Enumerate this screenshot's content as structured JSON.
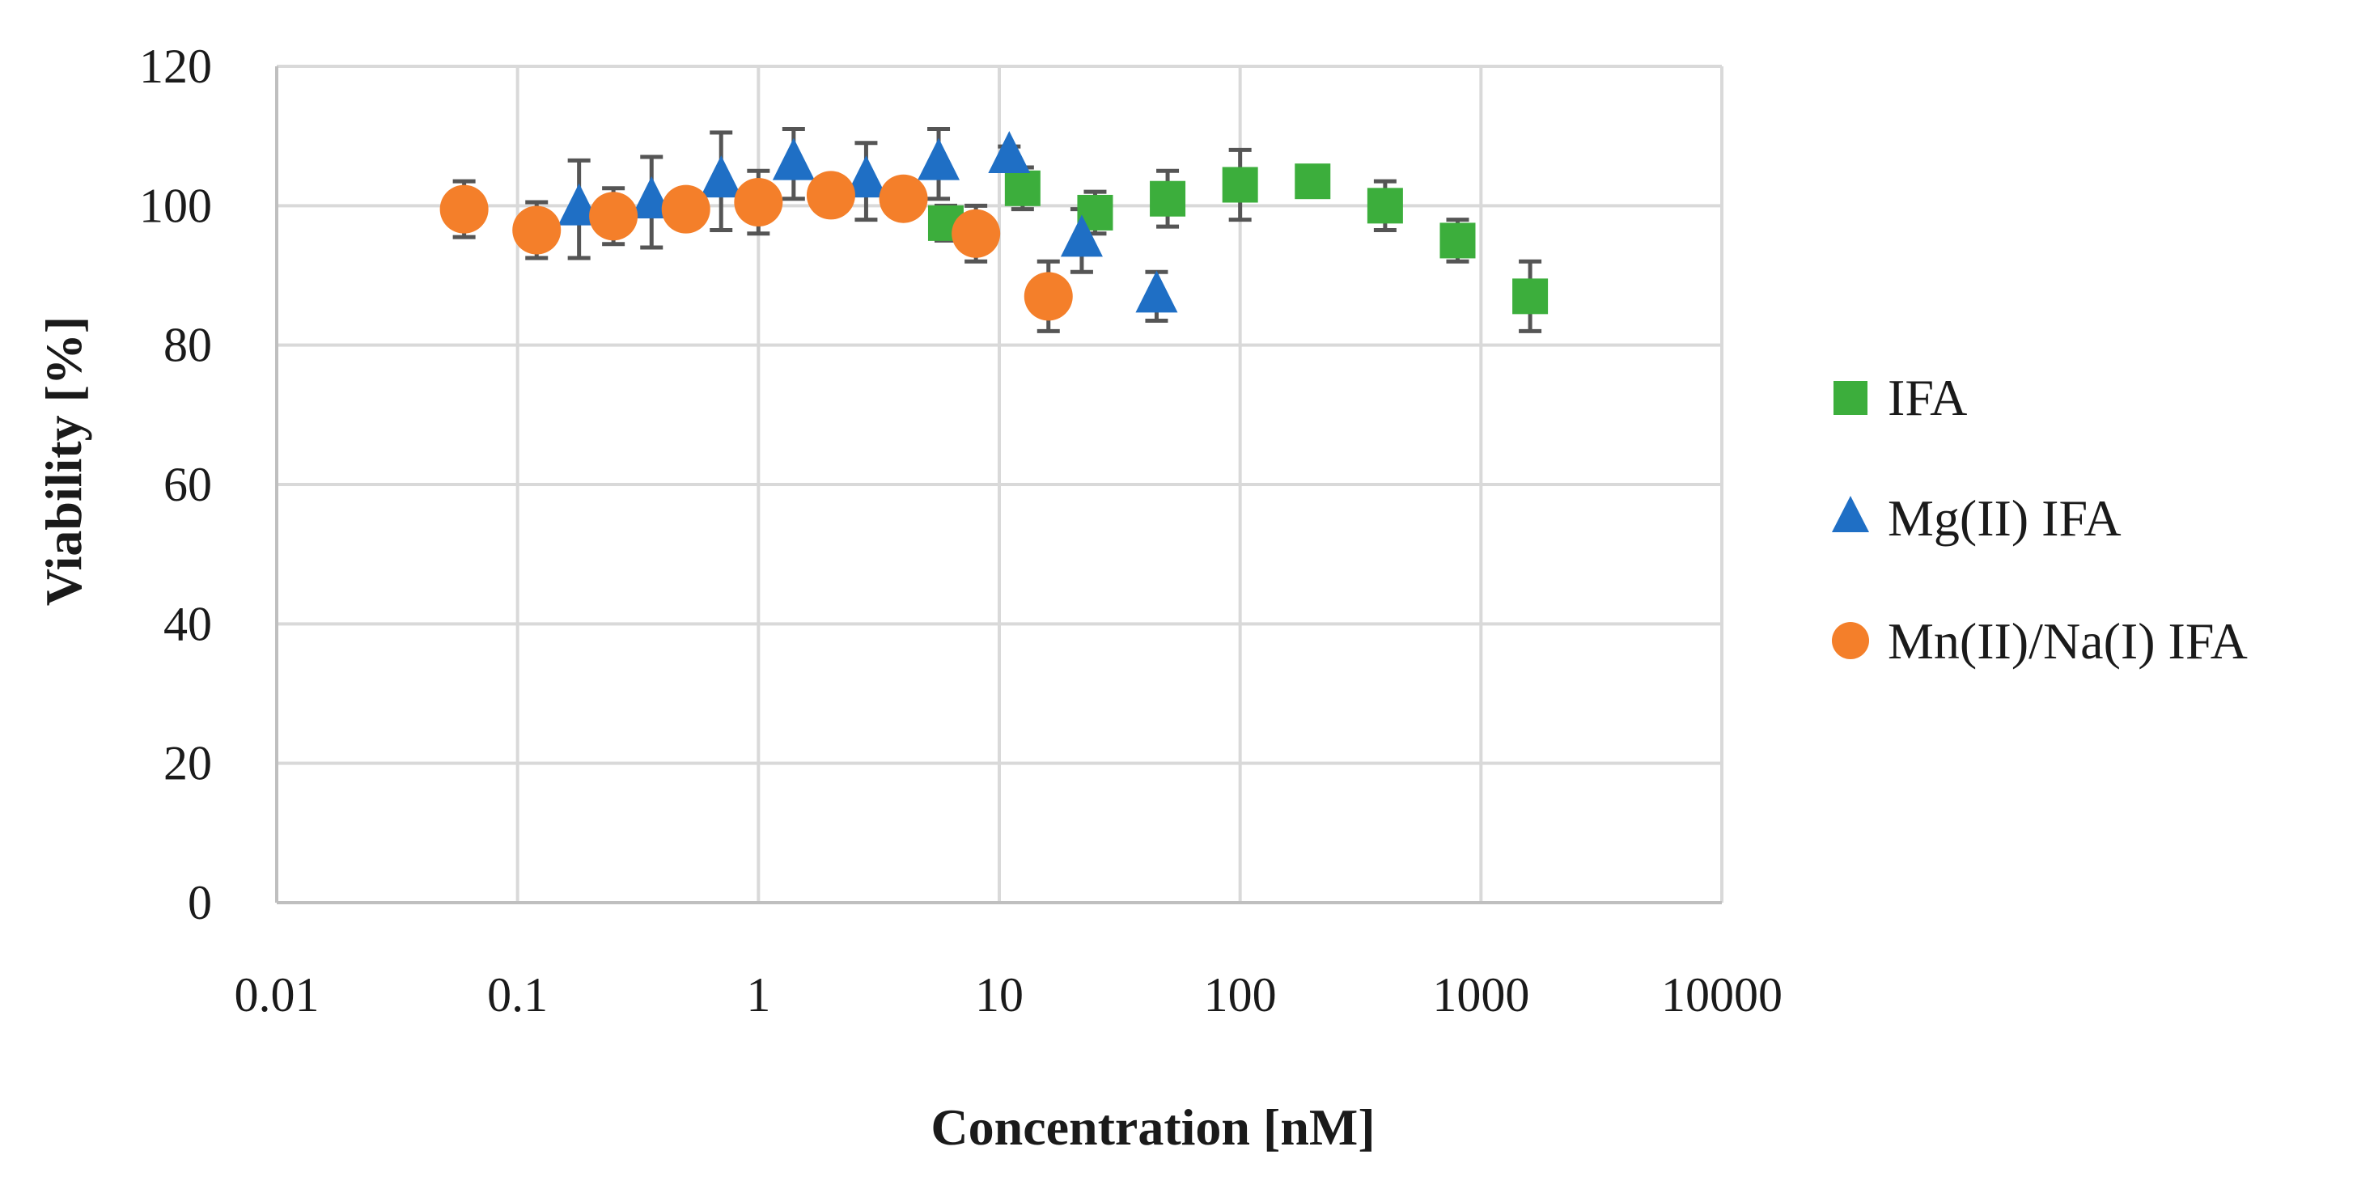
{
  "chart_data": {
    "type": "scatter",
    "title": "",
    "xlabel": "Concentration [nM]",
    "ylabel": "Viability [%]",
    "xscale": "log",
    "xlim": [
      0.01,
      10000
    ],
    "ylim": [
      0,
      120
    ],
    "xticks": [
      "0.01",
      "0.1",
      "1",
      "10",
      "100",
      "1000",
      "10000"
    ],
    "yticks": [
      "0",
      "20",
      "40",
      "60",
      "80",
      "100",
      "120"
    ],
    "grid": true,
    "legend_position": "right",
    "series": [
      {
        "name": "IFA",
        "marker": "square",
        "color": "#3cae3c",
        "points": [
          {
            "x": 6,
            "y": 97.5,
            "err": 2.5
          },
          {
            "x": 12.5,
            "y": 102.5,
            "err": 3
          },
          {
            "x": 25,
            "y": 99,
            "err": 3
          },
          {
            "x": 50,
            "y": 101,
            "err": 4
          },
          {
            "x": 100,
            "y": 103,
            "err": 5
          },
          {
            "x": 200,
            "y": 103.5,
            "err": 1.5
          },
          {
            "x": 400,
            "y": 100,
            "err": 3.5
          },
          {
            "x": 800,
            "y": 95,
            "err": 3
          },
          {
            "x": 1600,
            "y": 87,
            "err": 5
          }
        ]
      },
      {
        "name": "Mg(II) IFA",
        "marker": "triangle",
        "color": "#1f6fc5",
        "points": [
          {
            "x": 0.18,
            "y": 99.5,
            "err": 7
          },
          {
            "x": 0.36,
            "y": 100.5,
            "err": 6.5
          },
          {
            "x": 0.7,
            "y": 103.5,
            "err": 7
          },
          {
            "x": 1.4,
            "y": 106,
            "err": 5
          },
          {
            "x": 2.8,
            "y": 103.5,
            "err": 5.5
          },
          {
            "x": 5.6,
            "y": 106,
            "err": 5
          },
          {
            "x": 11,
            "y": 107,
            "err": 1.5
          },
          {
            "x": 22,
            "y": 95,
            "err": 4.5
          },
          {
            "x": 45,
            "y": 87,
            "err": 3.5
          }
        ]
      },
      {
        "name": "Mn(II)/Na(I) IFA",
        "marker": "circle",
        "color": "#f47f2a",
        "points": [
          {
            "x": 0.06,
            "y": 99.5,
            "err": 4
          },
          {
            "x": 0.12,
            "y": 96.5,
            "err": 4
          },
          {
            "x": 0.25,
            "y": 98.5,
            "err": 4
          },
          {
            "x": 0.5,
            "y": 99.5,
            "err": 2
          },
          {
            "x": 1,
            "y": 100.5,
            "err": 4.5
          },
          {
            "x": 2,
            "y": 101.5,
            "err": 1
          },
          {
            "x": 4,
            "y": 101,
            "err": 1
          },
          {
            "x": 8,
            "y": 96,
            "err": 4
          },
          {
            "x": 16,
            "y": 87,
            "err": 5
          }
        ]
      }
    ]
  }
}
